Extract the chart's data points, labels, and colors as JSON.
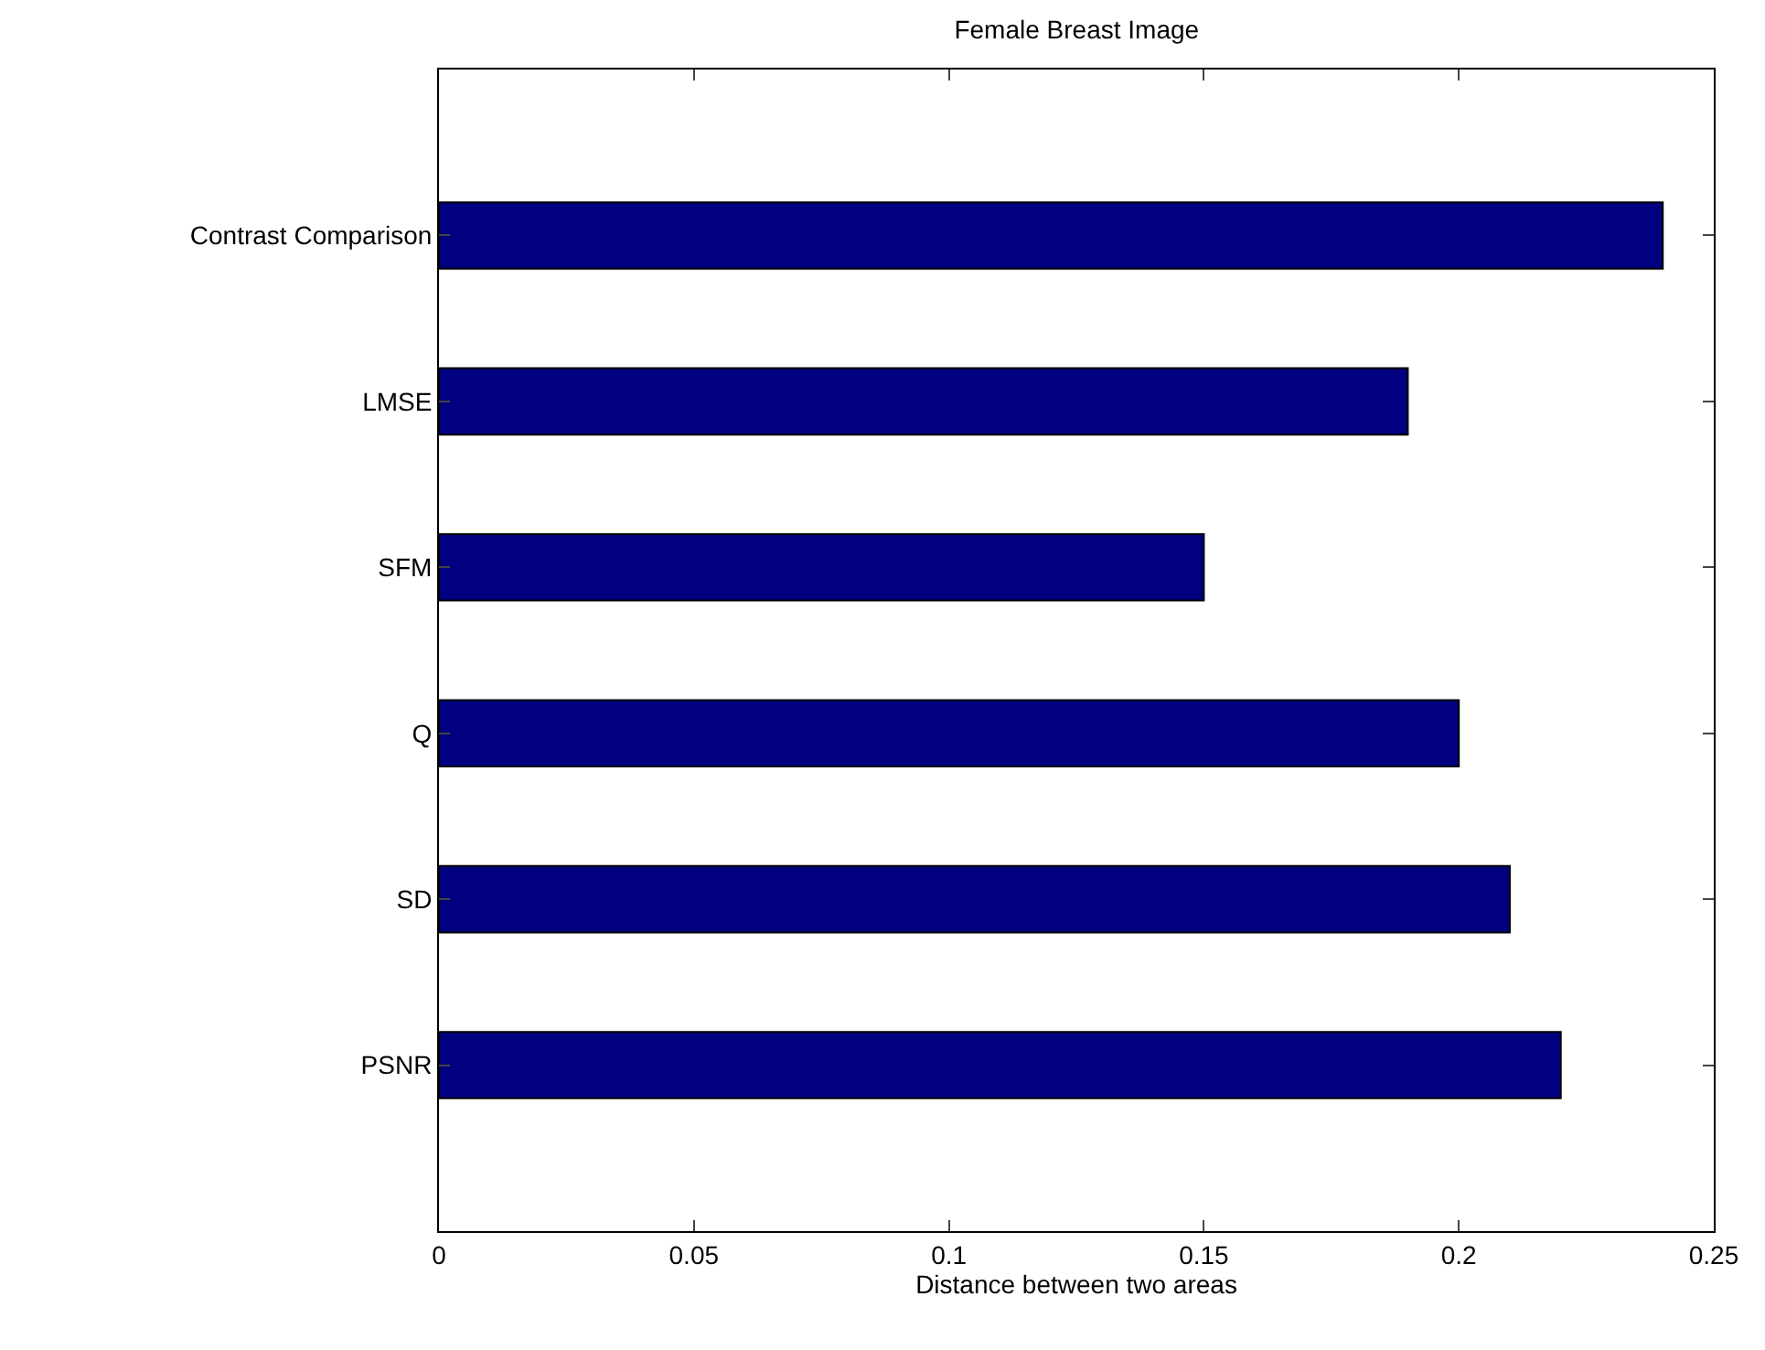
{
  "chart_data": {
    "type": "bar",
    "orientation": "horizontal",
    "title": "Female Breast Image",
    "xlabel": "Distance between two areas",
    "categories": [
      "Contrast Comparison",
      "LMSE",
      "SFM",
      "Q",
      "SD",
      "PSNR"
    ],
    "values": [
      0.24,
      0.19,
      0.15,
      0.2,
      0.21,
      0.22
    ],
    "color": "#000080",
    "xlim": [
      0,
      0.25
    ],
    "xticks": [
      0,
      0.05,
      0.1,
      0.15,
      0.2,
      0.25
    ],
    "grid": false,
    "legend": false
  }
}
